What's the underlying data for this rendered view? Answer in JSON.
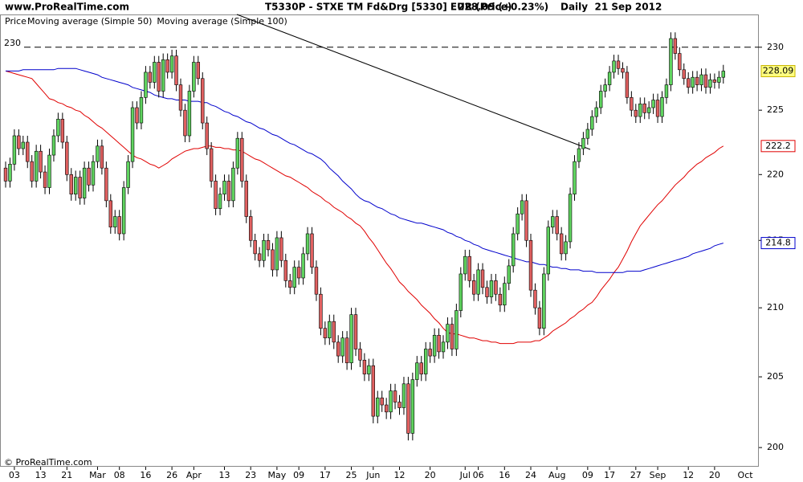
{
  "chart_data": {
    "type": "candlestick",
    "site": "www.ProRealTime.com",
    "title": "T5330P - STXE TM Fd&Drg [5330] EUR (Price)",
    "quote": "228.09 (+0.23%)",
    "period": "Daily  21 Sep 2012",
    "footer": "© ProRealTime.com",
    "legend_label": "Price",
    "x_end_label": "Oct",
    "categories": [
      null,
      null,
      "03",
      null,
      null,
      null,
      null,
      null,
      "13",
      null,
      null,
      null,
      null,
      null,
      "21",
      null,
      null,
      null,
      null,
      null,
      null,
      "Mar",
      null,
      null,
      null,
      null,
      "08",
      null,
      null,
      null,
      null,
      null,
      "16",
      null,
      null,
      null,
      null,
      null,
      "26",
      null,
      null,
      null,
      null,
      "Apr",
      null,
      null,
      null,
      null,
      null,
      null,
      "13",
      null,
      null,
      null,
      null,
      null,
      "23",
      null,
      null,
      null,
      null,
      null,
      "May",
      null,
      null,
      null,
      null,
      "09",
      null,
      null,
      null,
      null,
      null,
      "17",
      null,
      null,
      null,
      null,
      null,
      "25",
      null,
      null,
      null,
      null,
      "Jun",
      null,
      null,
      null,
      null,
      null,
      "12",
      null,
      null,
      null,
      null,
      null,
      null,
      "20",
      null,
      null,
      null,
      null,
      null,
      null,
      null,
      "Jul",
      null,
      null,
      "06",
      null,
      null,
      null,
      null,
      null,
      "16",
      null,
      null,
      null,
      null,
      null,
      "24",
      null,
      null,
      null,
      null,
      null,
      "Aug",
      null,
      null,
      null,
      null,
      null,
      null,
      "09",
      null,
      null,
      null,
      null,
      "17",
      null,
      null,
      null,
      null,
      null,
      "27",
      null,
      null,
      null,
      null,
      "Sep",
      null,
      null,
      null,
      null,
      null,
      null,
      "12",
      null,
      null,
      null,
      null,
      null,
      "20",
      null,
      null
    ],
    "open": [
      220.5,
      219.5,
      220.8,
      223.0,
      222.0,
      222.5,
      221.0,
      219.5,
      221.8,
      220.2,
      219.0,
      221.5,
      223.0,
      224.3,
      222.5,
      220.0,
      218.5,
      219.8,
      218.2,
      220.5,
      219.2,
      221.0,
      222.2,
      220.5,
      218.0,
      216.0,
      216.8,
      215.5,
      219.0,
      221.0,
      225.2,
      224.0,
      226.0,
      228.0,
      227.2,
      228.8,
      226.5,
      229.0,
      228.0,
      229.3,
      227.0,
      225.0,
      223.0,
      226.5,
      228.8,
      227.5,
      224.0,
      222.0,
      219.5,
      217.4,
      218.5,
      219.5,
      218.0,
      220.5,
      222.8,
      219.5,
      216.8,
      215.0,
      214.0,
      213.5,
      215.0,
      214.3,
      212.8,
      215.2,
      213.5,
      212.0,
      211.5,
      213.0,
      212.2,
      214.0,
      215.5,
      213.0,
      211.0,
      208.5,
      207.8,
      209.0,
      207.5,
      206.5,
      207.8,
      206.0,
      209.5,
      207.0,
      206.2,
      205.2,
      205.8,
      202.2,
      203.5,
      203.0,
      202.5,
      204.0,
      203.2,
      202.8,
      204.5,
      201.0,
      204.8,
      206.0,
      205.2,
      207.0,
      206.5,
      208.0,
      206.8,
      207.5,
      208.8,
      207.0,
      209.8,
      212.5,
      213.8,
      212.0,
      211.0,
      212.8,
      211.5,
      210.8,
      212.0,
      211.0,
      210.2,
      211.8,
      213.1,
      215.5,
      217.0,
      218.0,
      215.0,
      211.3,
      210.0,
      208.5,
      212.5,
      216.0,
      216.8,
      215.5,
      214.0,
      214.9,
      218.5,
      221.0,
      222.0,
      222.8,
      223.5,
      224.5,
      225.2,
      226.5,
      227.0,
      228.0,
      228.9,
      228.3,
      228.0,
      226.0,
      225.0,
      224.5,
      225.5,
      224.8,
      225.2,
      225.8,
      224.5,
      226.0,
      227.0,
      230.7,
      229.5,
      228.2,
      227.5,
      226.8,
      227.6,
      227.0,
      227.8,
      226.8,
      227.4,
      227.2,
      227.6
    ],
    "high": [
      221.0,
      221.3,
      223.5,
      223.5,
      223.0,
      223.0,
      221.5,
      222.3,
      222.3,
      220.7,
      222.0,
      223.5,
      224.8,
      224.8,
      223.0,
      220.5,
      220.3,
      220.3,
      221.0,
      221.0,
      221.5,
      222.7,
      222.7,
      221.0,
      218.5,
      217.3,
      217.3,
      219.5,
      221.5,
      225.7,
      225.7,
      226.5,
      228.5,
      228.5,
      229.3,
      229.3,
      229.5,
      229.5,
      229.8,
      229.8,
      227.5,
      225.5,
      227.0,
      229.3,
      229.3,
      228.0,
      224.5,
      222.5,
      220.0,
      219.0,
      220.0,
      220.0,
      221.0,
      223.3,
      223.3,
      220.0,
      217.3,
      215.5,
      214.5,
      215.5,
      215.5,
      214.8,
      215.7,
      215.7,
      214.0,
      212.5,
      213.5,
      213.5,
      214.5,
      216.0,
      216.0,
      213.5,
      211.5,
      209.0,
      209.5,
      209.5,
      208.0,
      208.3,
      208.3,
      210.0,
      210.0,
      207.5,
      206.7,
      206.3,
      206.3,
      204.0,
      204.0,
      203.5,
      204.5,
      204.5,
      203.7,
      205.0,
      205.0,
      205.3,
      206.5,
      206.5,
      207.5,
      207.5,
      208.5,
      208.5,
      208.0,
      209.3,
      209.3,
      210.3,
      213.0,
      214.3,
      214.3,
      212.5,
      213.3,
      213.3,
      212.0,
      212.5,
      212.5,
      211.5,
      212.3,
      213.6,
      216.0,
      217.5,
      218.5,
      218.5,
      215.5,
      211.8,
      210.5,
      213.0,
      216.5,
      217.3,
      217.3,
      216.0,
      215.4,
      219.0,
      221.5,
      222.5,
      223.3,
      224.0,
      225.0,
      225.7,
      227.0,
      227.5,
      228.5,
      229.4,
      229.4,
      228.8,
      228.5,
      226.5,
      225.5,
      226.0,
      226.0,
      225.7,
      226.3,
      226.3,
      226.5,
      227.5,
      231.2,
      231.2,
      230.0,
      228.7,
      228.0,
      228.1,
      228.1,
      228.3,
      228.3,
      227.9,
      227.9,
      228.1,
      228.59
    ],
    "low": [
      219.0,
      219.0,
      220.3,
      221.5,
      221.5,
      220.5,
      219.0,
      219.0,
      219.7,
      218.5,
      218.5,
      221.0,
      222.5,
      222.0,
      219.5,
      218.0,
      218.0,
      217.7,
      217.7,
      218.7,
      218.7,
      220.5,
      220.0,
      217.5,
      215.5,
      215.5,
      215.0,
      215.0,
      218.5,
      220.5,
      223.5,
      223.5,
      225.5,
      226.7,
      226.7,
      226.0,
      226.0,
      227.5,
      227.5,
      226.5,
      224.5,
      222.5,
      222.5,
      226.0,
      227.0,
      223.5,
      221.5,
      219.0,
      216.9,
      216.9,
      218.0,
      217.5,
      217.5,
      220.0,
      219.0,
      216.3,
      214.5,
      213.5,
      213.0,
      213.0,
      213.8,
      212.3,
      212.3,
      213.0,
      211.5,
      211.0,
      211.0,
      211.7,
      211.7,
      213.5,
      212.5,
      210.5,
      208.0,
      207.3,
      207.3,
      207.0,
      206.0,
      206.0,
      205.5,
      205.5,
      206.5,
      205.7,
      204.7,
      204.7,
      201.7,
      201.7,
      202.5,
      202.0,
      202.0,
      202.7,
      202.3,
      202.3,
      200.5,
      200.5,
      204.3,
      204.7,
      204.7,
      206.0,
      206.0,
      206.3,
      206.3,
      207.0,
      206.5,
      206.5,
      209.3,
      212.0,
      211.5,
      210.5,
      210.5,
      211.0,
      210.3,
      210.3,
      210.5,
      209.7,
      209.7,
      211.3,
      212.6,
      215.0,
      216.5,
      214.5,
      210.8,
      209.5,
      208.0,
      208.0,
      212.0,
      215.5,
      215.0,
      213.5,
      213.5,
      214.4,
      218.0,
      220.5,
      221.5,
      222.3,
      223.0,
      224.0,
      224.7,
      226.0,
      226.5,
      227.5,
      227.8,
      227.5,
      225.5,
      224.5,
      224.0,
      224.0,
      224.3,
      224.3,
      224.7,
      224.0,
      224.0,
      225.5,
      226.5,
      229.0,
      227.7,
      227.0,
      226.3,
      226.3,
      226.5,
      226.5,
      226.3,
      226.3,
      226.7,
      226.7,
      227.1
    ],
    "close": [
      219.5,
      220.8,
      223.0,
      222.0,
      222.5,
      221.0,
      219.5,
      221.8,
      220.2,
      219.0,
      221.5,
      223.0,
      224.3,
      222.5,
      220.0,
      218.5,
      219.8,
      218.2,
      220.5,
      219.2,
      221.0,
      222.2,
      220.5,
      218.0,
      216.0,
      216.8,
      215.5,
      219.0,
      221.0,
      225.2,
      224.0,
      226.0,
      228.0,
      227.2,
      228.8,
      226.5,
      229.0,
      228.0,
      229.3,
      227.0,
      225.0,
      223.0,
      226.5,
      228.8,
      227.5,
      224.0,
      222.0,
      219.5,
      217.4,
      218.5,
      219.5,
      218.0,
      220.5,
      222.8,
      219.5,
      216.8,
      215.0,
      214.0,
      213.5,
      215.0,
      214.3,
      212.8,
      215.2,
      213.5,
      212.0,
      211.5,
      213.0,
      212.2,
      214.0,
      215.5,
      213.0,
      211.0,
      208.5,
      207.8,
      209.0,
      207.5,
      206.5,
      207.8,
      206.0,
      209.5,
      207.0,
      206.2,
      205.2,
      205.8,
      202.2,
      203.5,
      203.0,
      202.5,
      204.0,
      203.2,
      202.8,
      204.5,
      201.0,
      204.8,
      206.0,
      205.2,
      207.0,
      206.5,
      208.0,
      206.8,
      207.5,
      208.8,
      207.0,
      209.8,
      212.5,
      213.8,
      212.0,
      211.0,
      212.8,
      211.5,
      210.8,
      212.0,
      211.0,
      210.2,
      211.8,
      213.1,
      215.5,
      217.0,
      218.0,
      215.0,
      211.3,
      210.0,
      208.5,
      212.5,
      216.0,
      216.8,
      215.5,
      214.0,
      214.9,
      218.5,
      221.0,
      222.0,
      222.8,
      223.5,
      224.5,
      225.2,
      226.5,
      227.0,
      228.0,
      228.9,
      228.3,
      228.0,
      226.0,
      225.0,
      224.5,
      225.5,
      224.8,
      225.2,
      225.8,
      224.5,
      226.0,
      227.0,
      230.7,
      229.5,
      228.2,
      227.5,
      226.8,
      227.6,
      227.0,
      227.8,
      226.8,
      227.4,
      227.2,
      227.6,
      228.09
    ],
    "up_color": "#5fd35f",
    "down_color": "#e06060",
    "series": [
      {
        "name": "Moving average (Simple 50)",
        "color": "#e00000",
        "values": [
          228.1,
          228.0,
          227.9,
          227.8,
          227.7,
          227.6,
          227.5,
          227.1,
          226.7,
          226.3,
          225.9,
          225.8,
          225.6,
          225.5,
          225.3,
          225.2,
          225.0,
          224.9,
          224.6,
          224.4,
          224.1,
          223.8,
          223.6,
          223.3,
          223.0,
          222.7,
          222.4,
          222.1,
          221.8,
          221.5,
          221.3,
          221.2,
          221.0,
          220.8,
          220.7,
          220.5,
          220.7,
          220.9,
          221.2,
          221.4,
          221.6,
          221.8,
          221.9,
          222.0,
          222.0,
          222.1,
          222.2,
          222.2,
          222.1,
          222.1,
          222.0,
          222.0,
          221.9,
          221.9,
          221.8,
          221.6,
          221.4,
          221.2,
          221.1,
          220.9,
          220.7,
          220.5,
          220.3,
          220.1,
          219.9,
          219.8,
          219.6,
          219.4,
          219.2,
          219.0,
          218.7,
          218.5,
          218.3,
          218.0,
          217.8,
          217.5,
          217.3,
          217.1,
          216.8,
          216.6,
          216.3,
          216.1,
          215.7,
          215.2,
          214.8,
          214.3,
          213.8,
          213.3,
          212.9,
          212.4,
          211.9,
          211.6,
          211.2,
          210.9,
          210.6,
          210.2,
          209.9,
          209.6,
          209.2,
          208.9,
          208.5,
          208.2,
          208.1,
          208.1,
          208.0,
          207.9,
          207.8,
          207.8,
          207.7,
          207.6,
          207.6,
          207.5,
          207.5,
          207.4,
          207.4,
          207.4,
          207.4,
          207.5,
          207.5,
          207.5,
          207.5,
          207.6,
          207.6,
          207.8,
          208.0,
          208.3,
          208.5,
          208.7,
          208.9,
          209.2,
          209.4,
          209.7,
          209.9,
          210.2,
          210.4,
          210.8,
          211.3,
          211.7,
          212.1,
          212.6,
          213.0,
          213.6,
          214.2,
          214.9,
          215.5,
          216.1,
          216.5,
          216.9,
          217.3,
          217.7,
          218.0,
          218.4,
          218.8,
          219.2,
          219.5,
          219.8,
          220.2,
          220.5,
          220.8,
          221.0,
          221.3,
          221.5,
          221.7,
          222.0,
          222.2
        ]
      },
      {
        "name": "Moving average (Simple 100)",
        "color": "#0000cc",
        "values": [
          228.1,
          228.1,
          228.1,
          228.1,
          228.2,
          228.2,
          228.2,
          228.2,
          228.2,
          228.2,
          228.2,
          228.2,
          228.3,
          228.3,
          228.3,
          228.3,
          228.3,
          228.2,
          228.1,
          228.0,
          227.9,
          227.8,
          227.6,
          227.5,
          227.4,
          227.3,
          227.2,
          227.1,
          227.0,
          226.8,
          226.7,
          226.6,
          226.5,
          226.4,
          226.2,
          226.1,
          226.0,
          225.9,
          225.9,
          225.8,
          225.8,
          225.8,
          225.7,
          225.7,
          225.7,
          225.6,
          225.6,
          225.4,
          225.3,
          225.1,
          224.9,
          224.8,
          224.6,
          224.5,
          224.3,
          224.1,
          224.0,
          223.8,
          223.6,
          223.5,
          223.3,
          223.1,
          223.0,
          222.8,
          222.6,
          222.4,
          222.3,
          222.1,
          221.9,
          221.7,
          221.6,
          221.4,
          221.2,
          220.9,
          220.5,
          220.2,
          219.9,
          219.5,
          219.2,
          218.9,
          218.5,
          218.2,
          218.0,
          217.9,
          217.7,
          217.5,
          217.4,
          217.2,
          217.0,
          216.9,
          216.7,
          216.6,
          216.5,
          216.4,
          216.3,
          216.3,
          216.2,
          216.1,
          216.0,
          215.9,
          215.8,
          215.6,
          215.5,
          215.3,
          215.2,
          215.0,
          214.9,
          214.7,
          214.6,
          214.4,
          214.3,
          214.2,
          214.1,
          214.0,
          213.9,
          213.8,
          213.7,
          213.6,
          213.5,
          213.4,
          213.4,
          213.3,
          213.2,
          213.2,
          213.1,
          213.0,
          213.0,
          212.9,
          212.9,
          212.8,
          212.8,
          212.8,
          212.7,
          212.7,
          212.7,
          212.6,
          212.6,
          212.6,
          212.6,
          212.6,
          212.6,
          212.6,
          212.7,
          212.7,
          212.7,
          212.7,
          212.8,
          212.9,
          213.0,
          213.1,
          213.2,
          213.3,
          213.4,
          213.5,
          213.6,
          213.7,
          213.8,
          214.0,
          214.1,
          214.2,
          214.3,
          214.4,
          214.6,
          214.7,
          214.8
        ]
      }
    ],
    "ylim": [
      199.0,
      233.3
    ],
    "yticks": [
      200,
      205,
      210,
      215,
      220,
      225,
      230
    ],
    "log_scale": true,
    "reference_line": 230
  }
}
